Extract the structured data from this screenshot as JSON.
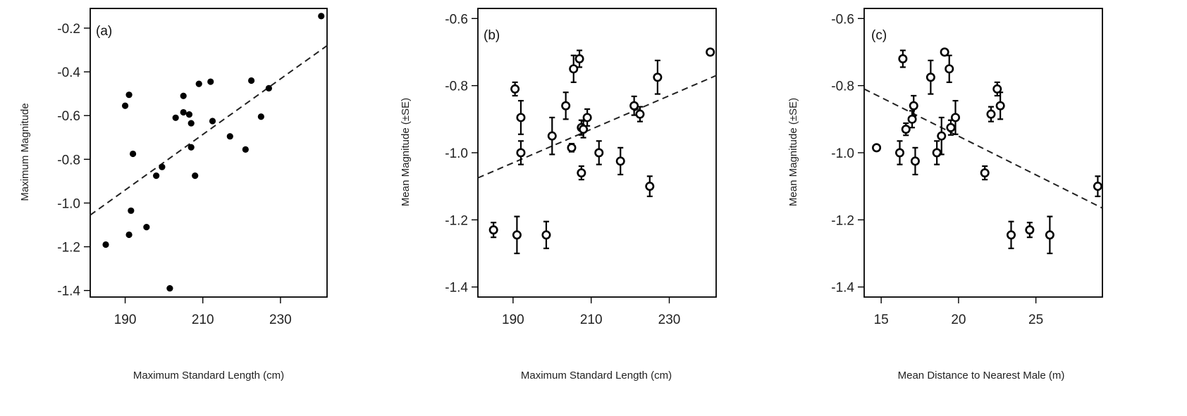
{
  "chart_data": [
    {
      "type": "scatter",
      "panel_label": "(a)",
      "xlabel": "Maximum Standard Length (cm)",
      "ylabel": "Maximum Magnitude",
      "xlim": [
        181,
        242
      ],
      "ylim": [
        -1.43,
        -0.11
      ],
      "xticks": [
        190,
        210,
        230
      ],
      "yticks": [
        -1.4,
        -1.2,
        -1.0,
        -0.8,
        -0.6,
        -0.4,
        -0.2
      ],
      "tick_labels_y": [
        "-1.4",
        "-1.2",
        "-1.0",
        "-0.8",
        "-0.6",
        "-0.4",
        "-0.2"
      ],
      "tick_labels_x": [
        "190",
        "210",
        "230"
      ],
      "marker": "filled",
      "points": [
        [
          185,
          -1.19
        ],
        [
          190,
          -0.555
        ],
        [
          191,
          -0.505
        ],
        [
          191,
          -1.145
        ],
        [
          191.5,
          -1.035
        ],
        [
          192,
          -0.775
        ],
        [
          195.5,
          -1.11
        ],
        [
          198,
          -0.875
        ],
        [
          199.5,
          -0.835
        ],
        [
          201.5,
          -1.39
        ],
        [
          203,
          -0.61
        ],
        [
          205,
          -0.51
        ],
        [
          205,
          -0.585
        ],
        [
          206.5,
          -0.595
        ],
        [
          207,
          -0.635
        ],
        [
          207,
          -0.745
        ],
        [
          208,
          -0.875
        ],
        [
          209,
          -0.455
        ],
        [
          212,
          -0.445
        ],
        [
          212.5,
          -0.625
        ],
        [
          217,
          -0.695
        ],
        [
          221,
          -0.755
        ],
        [
          222.5,
          -0.44
        ],
        [
          225,
          -0.605
        ],
        [
          227,
          -0.475
        ],
        [
          240.5,
          -0.145
        ]
      ],
      "fit_line": [
        [
          181,
          -1.055
        ],
        [
          242,
          -0.28
        ]
      ]
    },
    {
      "type": "scatter",
      "panel_label": "(b)",
      "xlabel": "Maximum Standard Length (cm)",
      "ylabel": "Mean Magnitude (±SE)",
      "xlim": [
        181,
        242
      ],
      "ylim": [
        -1.43,
        -0.57
      ],
      "xticks": [
        190,
        210,
        230
      ],
      "yticks": [
        -1.4,
        -1.2,
        -1.0,
        -0.8,
        -0.6
      ],
      "tick_labels_y": [
        "-1.4",
        "-1.2",
        "-1.0",
        "-0.8",
        "-0.6"
      ],
      "tick_labels_x": [
        "190",
        "210",
        "230"
      ],
      "marker": "open",
      "points": [
        [
          185,
          -1.23,
          0.022
        ],
        [
          190.5,
          -0.81,
          0.02
        ],
        [
          191,
          -1.245,
          0.055
        ],
        [
          192,
          -0.895,
          0.05
        ],
        [
          192,
          -1.0,
          0.035
        ],
        [
          198.5,
          -1.245,
          0.04
        ],
        [
          200,
          -0.95,
          0.055
        ],
        [
          203.5,
          -0.86,
          0.04
        ],
        [
          205,
          -0.985,
          0.012
        ],
        [
          205.5,
          -0.75,
          0.04
        ],
        [
          207,
          -0.72,
          0.025
        ],
        [
          207.5,
          -0.925,
          0.022
        ],
        [
          207.5,
          -1.06,
          0.02
        ],
        [
          208,
          -0.93,
          0.025
        ],
        [
          209,
          -0.895,
          0.025
        ],
        [
          212,
          -1.0,
          0.035
        ],
        [
          217.5,
          -1.025,
          0.04
        ],
        [
          221,
          -0.86,
          0.028
        ],
        [
          222.5,
          -0.885,
          0.022
        ],
        [
          225,
          -1.1,
          0.03
        ],
        [
          227,
          -0.775,
          0.05
        ],
        [
          240.5,
          -0.7,
          0.008
        ]
      ],
      "fit_line": [
        [
          181,
          -1.075
        ],
        [
          242,
          -0.77
        ]
      ]
    },
    {
      "type": "scatter",
      "panel_label": "(c)",
      "xlabel": "Mean Distance to Nearest Male (m)",
      "ylabel": "Mean Magnitude (±SE)",
      "xlim": [
        13.9,
        29.3
      ],
      "ylim": [
        -1.43,
        -0.57
      ],
      "xticks": [
        15,
        20,
        25
      ],
      "yticks": [
        -1.4,
        -1.2,
        -1.0,
        -0.8,
        -0.6
      ],
      "tick_labels_y": [
        "-1.4",
        "-1.2",
        "-1.0",
        "-0.8",
        "-0.6"
      ],
      "tick_labels_x": [
        "15",
        "20",
        "25"
      ],
      "marker": "open",
      "points": [
        [
          14.7,
          -0.985,
          0.008
        ],
        [
          16.2,
          -1.0,
          0.035
        ],
        [
          16.4,
          -0.72,
          0.025
        ],
        [
          16.6,
          -0.93,
          0.018
        ],
        [
          17.0,
          -0.9,
          0.025
        ],
        [
          17.1,
          -0.86,
          0.03
        ],
        [
          17.2,
          -1.025,
          0.04
        ],
        [
          18.2,
          -0.775,
          0.05
        ],
        [
          18.6,
          -1.0,
          0.035
        ],
        [
          18.9,
          -0.95,
          0.055
        ],
        [
          19.1,
          -0.7,
          0.008
        ],
        [
          19.4,
          -0.75,
          0.04
        ],
        [
          19.5,
          -0.925,
          0.022
        ],
        [
          19.8,
          -0.895,
          0.05
        ],
        [
          21.7,
          -1.06,
          0.02
        ],
        [
          22.1,
          -0.885,
          0.022
        ],
        [
          22.5,
          -0.81,
          0.02
        ],
        [
          22.7,
          -0.86,
          0.04
        ],
        [
          23.4,
          -1.245,
          0.04
        ],
        [
          24.6,
          -1.23,
          0.022
        ],
        [
          25.9,
          -1.245,
          0.055
        ],
        [
          29.0,
          -1.1,
          0.03
        ]
      ],
      "fit_line": [
        [
          13.9,
          -0.81
        ],
        [
          29.3,
          -1.165
        ]
      ]
    }
  ]
}
